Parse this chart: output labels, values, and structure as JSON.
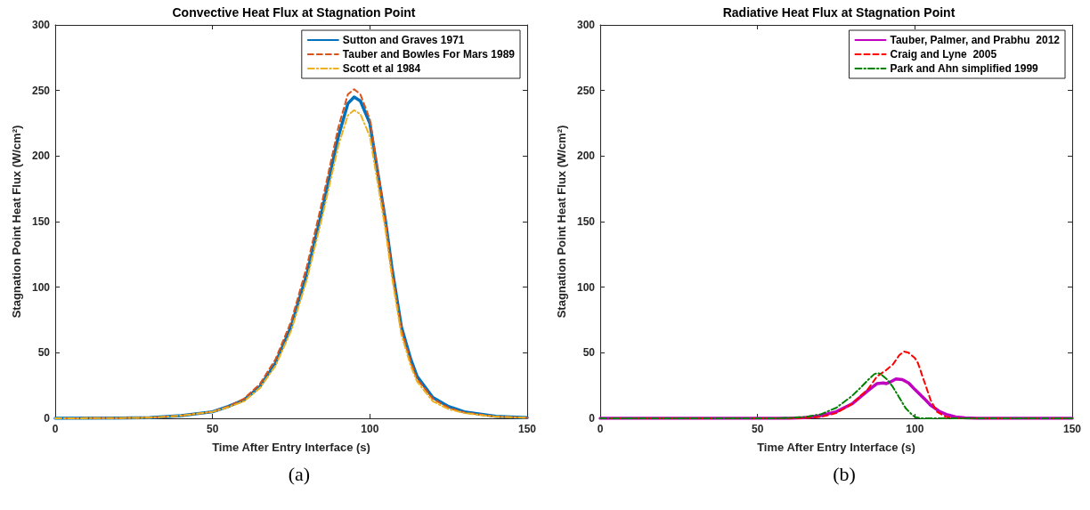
{
  "chart_data": [
    {
      "type": "line",
      "title": "Convective Heat Flux at Stagnation Point",
      "xlabel": "Time After Entry Interface (s)",
      "ylabel": "Stagnation Point Heat Flux (W/cm²)",
      "annotations": [
        "(a)"
      ],
      "xlim": [
        0,
        150
      ],
      "xticks": [
        0,
        50,
        100,
        150
      ],
      "ylim": [
        0,
        300
      ],
      "yticks": [
        0,
        50,
        100,
        150,
        200,
        250,
        300
      ],
      "grid": false,
      "legend": "top right",
      "marker": "none",
      "series": [
        {
          "name": "Sutton and Graves 1971",
          "color": "#0072bd",
          "line_style": "solid",
          "x": [
            0,
            20,
            30,
            40,
            50,
            55,
            60,
            65,
            70,
            75,
            80,
            85,
            90,
            93,
            95,
            97,
            100,
            103,
            105,
            107,
            110,
            113,
            115,
            120,
            125,
            130,
            140,
            150
          ],
          "values": [
            0,
            0.2,
            0.5,
            2,
            5,
            9,
            14,
            24,
            42,
            70,
            110,
            160,
            215,
            240,
            245,
            242,
            225,
            180,
            150,
            115,
            70,
            45,
            32,
            16,
            9,
            5,
            1.5,
            0.5
          ]
        },
        {
          "name": "Tauber and Bowles For Mars 1989",
          "color": "#d95319",
          "line_style": "dashed",
          "x": [
            0,
            20,
            30,
            40,
            50,
            55,
            60,
            65,
            70,
            75,
            80,
            85,
            90,
            93,
            95,
            97,
            100,
            103,
            105,
            107,
            110,
            113,
            115,
            120,
            125,
            130,
            140,
            150
          ],
          "values": [
            0,
            0.2,
            0.5,
            2,
            5,
            9,
            15,
            26,
            45,
            74,
            116,
            167,
            222,
            247,
            251,
            247,
            228,
            182,
            150,
            113,
            68,
            43,
            30,
            15,
            8,
            4.5,
            1.3,
            0.4
          ]
        },
        {
          "name": "Scott et al 1984",
          "color": "#edb120",
          "line_style": "dashdot",
          "x": [
            0,
            20,
            30,
            40,
            50,
            55,
            60,
            65,
            70,
            75,
            80,
            85,
            90,
            93,
            95,
            97,
            100,
            103,
            105,
            107,
            110,
            113,
            115,
            120,
            125,
            130,
            140,
            150
          ],
          "values": [
            0,
            0.2,
            0.5,
            2,
            5,
            8.5,
            13,
            23,
            40,
            67,
            106,
            155,
            208,
            231,
            235,
            232,
            215,
            172,
            143,
            108,
            64,
            40,
            28,
            13,
            7,
            4,
            1.2,
            0.4
          ]
        }
      ]
    },
    {
      "type": "line",
      "title": "Radiative Heat Flux at Stagnation Point",
      "xlabel": "Time After Entry Interface (s)",
      "ylabel": "Stagnation Point Heat Flux (W/cm²)",
      "annotations": [
        "(b)"
      ],
      "xlim": [
        0,
        150
      ],
      "xticks": [
        0,
        50,
        100,
        150
      ],
      "ylim": [
        0,
        300
      ],
      "yticks": [
        0,
        50,
        100,
        150,
        200,
        250,
        300
      ],
      "grid": false,
      "legend": "top right",
      "marker": "none",
      "series": [
        {
          "name": "Tauber, Palmer, and Prabhu  2012",
          "color": "#c000c0",
          "line_style": "solid",
          "x": [
            0,
            60,
            65,
            70,
            75,
            80,
            85,
            88,
            90,
            91,
            92,
            94,
            96,
            98,
            100,
            103,
            105,
            108,
            110,
            113,
            116,
            120,
            150
          ],
          "values": [
            0,
            0,
            0.5,
            2,
            5,
            11,
            21,
            26.5,
            27,
            26.5,
            27.5,
            30,
            29.5,
            27,
            22,
            15,
            10,
            5,
            3,
            1,
            0.3,
            0,
            0
          ]
        },
        {
          "name": "Craig and Lyne  2005",
          "color": "#ff0000",
          "line_style": "dashed",
          "x": [
            0,
            60,
            65,
            70,
            75,
            80,
            85,
            88,
            91,
            93,
            95,
            96.5,
            98,
            100,
            101,
            103,
            105,
            107,
            110,
            113,
            150
          ],
          "values": [
            0,
            0,
            0.3,
            1,
            4,
            11,
            22,
            32,
            37,
            41,
            48,
            51,
            50,
            46,
            42,
            28,
            14,
            5,
            1,
            0,
            0
          ]
        },
        {
          "name": "Park and Ahn simplified 1999",
          "color": "#008000",
          "line_style": "dashdot",
          "x": [
            0,
            55,
            60,
            65,
            70,
            75,
            80,
            83,
            85,
            87,
            88,
            89,
            91,
            93,
            95,
            97,
            99,
            100,
            102,
            150
          ],
          "values": [
            0,
            0,
            0.3,
            1,
            3,
            8,
            17,
            24,
            29,
            33.5,
            34.5,
            34,
            30,
            24,
            16,
            8,
            3,
            1,
            0,
            0
          ]
        }
      ]
    }
  ]
}
